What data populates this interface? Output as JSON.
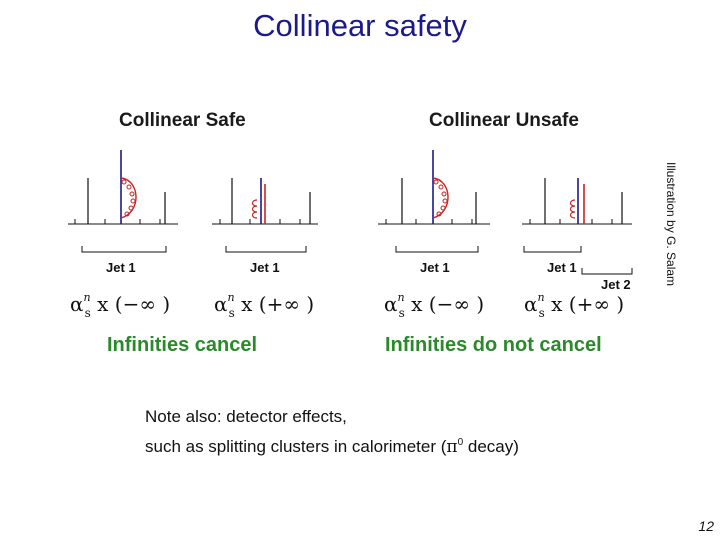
{
  "slide": {
    "title": "Collinear safety",
    "page_number": "12",
    "credit": "Illustration by G. Salam"
  },
  "safe": {
    "heading": "Collinear Safe",
    "virtual": {
      "jet_label": "Jet 1",
      "formula_times": "x",
      "formula_value": "(−∞ )"
    },
    "real": {
      "jet_label": "Jet 1",
      "formula_times": "x",
      "formula_value": "(+∞ )"
    },
    "result": "Infinities cancel"
  },
  "unsafe": {
    "heading": "Collinear Unsafe",
    "virtual": {
      "jet_label": "Jet 1",
      "formula_times": "x",
      "formula_value": "(−∞ )"
    },
    "real": {
      "jet_label": "Jet 1",
      "jet2_label": "Jet 2",
      "formula_times": "x",
      "formula_value": "(+∞ )"
    },
    "result": "Infinities do not cancel"
  },
  "formula": {
    "symbol": "α",
    "power": "n",
    "subscript": "s"
  },
  "note": {
    "line1": "Note also: detector effects,",
    "line2_prefix": "such as splitting clusters in calorimeter (",
    "pi_symbol": "π",
    "pi_superscript": "0",
    "line2_suffix": " decay)"
  },
  "colors": {
    "title": "#1a1a8a",
    "result": "#2a8a2a",
    "line_blue": "#1a1a8a",
    "gluon_red": "#cc2222"
  }
}
